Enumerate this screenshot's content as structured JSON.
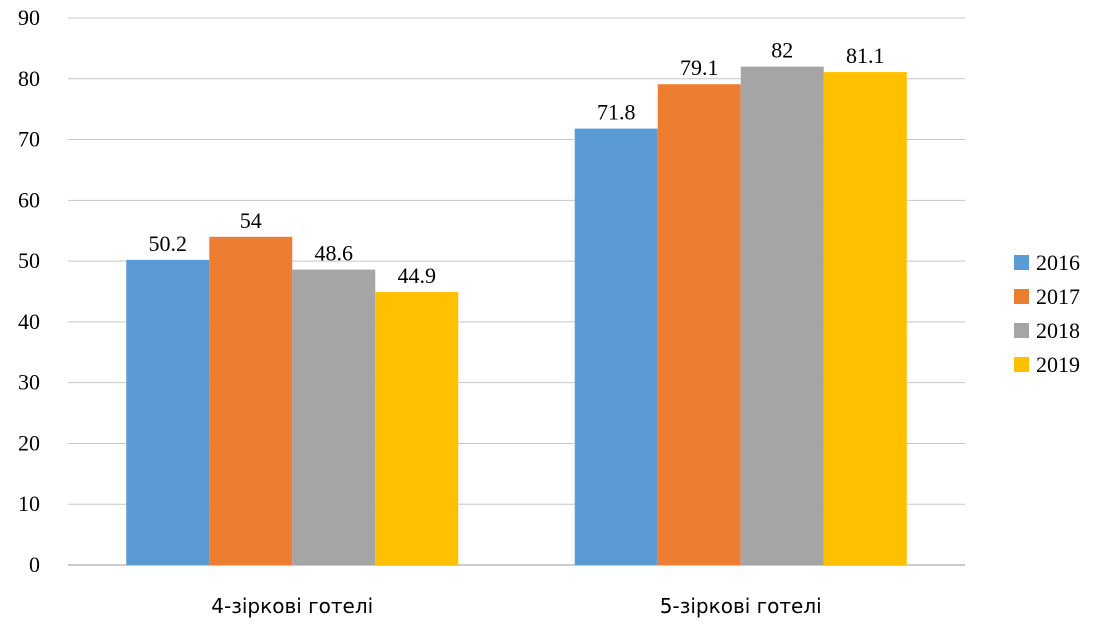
{
  "chart_data": {
    "type": "bar",
    "categories": [
      "4-зіркові готелі",
      "5-зіркові готелі"
    ],
    "series": [
      {
        "name": "2016",
        "color": "#5B9BD5",
        "values": [
          50.2,
          71.8
        ],
        "labels": [
          "50.2",
          "71.8"
        ]
      },
      {
        "name": "2017",
        "color": "#ED7D31",
        "values": [
          54,
          79.1
        ],
        "labels": [
          "54",
          "79.1"
        ]
      },
      {
        "name": "2018",
        "color": "#A5A5A5",
        "values": [
          48.6,
          82
        ],
        "labels": [
          "48.6",
          "82"
        ]
      },
      {
        "name": "2019",
        "color": "#FFC000",
        "values": [
          44.9,
          81.1
        ],
        "labels": [
          "44.9",
          "81.1"
        ]
      }
    ],
    "yticks": [
      "0",
      "10",
      "20",
      "30",
      "40",
      "50",
      "60",
      "70",
      "80",
      "90"
    ],
    "ylim": [
      0,
      90
    ],
    "grid": true,
    "legend_position": "right",
    "title": "",
    "xlabel": "",
    "ylabel": ""
  }
}
